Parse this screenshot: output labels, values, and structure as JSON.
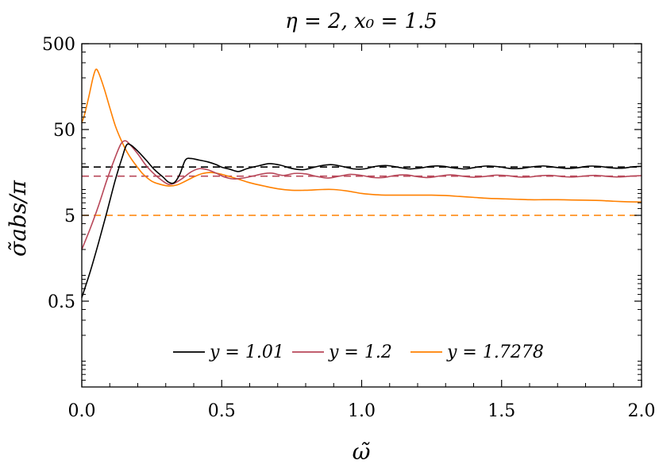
{
  "chart_data": {
    "type": "line",
    "title": "η = 2, x₀ = 1.5",
    "xlabel": "ω̃",
    "ylabel": "σ̃abs/π",
    "xscale": "linear",
    "yscale": "log",
    "xlim": [
      0,
      2
    ],
    "ylim": [
      0.05,
      500
    ],
    "xticks": [
      "0.0",
      "0.5",
      "1.0",
      "1.5",
      "2.0"
    ],
    "yticks": [
      "0.5",
      "5",
      "50",
      "500"
    ],
    "legend_position": "lower-center",
    "grid": false,
    "series": [
      {
        "name": "y = 1.01",
        "color": "#000000",
        "style": "solid",
        "points": [
          [
            0.0,
            0.55
          ],
          [
            0.03,
            1.1
          ],
          [
            0.06,
            2.4
          ],
          [
            0.09,
            5.5
          ],
          [
            0.12,
            13
          ],
          [
            0.145,
            24
          ],
          [
            0.16,
            33
          ],
          [
            0.175,
            33
          ],
          [
            0.2,
            28
          ],
          [
            0.23,
            22
          ],
          [
            0.26,
            17
          ],
          [
            0.29,
            14
          ],
          [
            0.31,
            12.2
          ],
          [
            0.33,
            12.0
          ],
          [
            0.35,
            15
          ],
          [
            0.37,
            22
          ],
          [
            0.39,
            23
          ],
          [
            0.42,
            22
          ],
          [
            0.45,
            21
          ],
          [
            0.48,
            19.5
          ],
          [
            0.5,
            18.2
          ],
          [
            0.53,
            17.2
          ],
          [
            0.56,
            16.2
          ],
          [
            0.59,
            17.5
          ],
          [
            0.63,
            18.8
          ],
          [
            0.67,
            20
          ],
          [
            0.71,
            19.2
          ],
          [
            0.75,
            17.6
          ],
          [
            0.79,
            17
          ],
          [
            0.82,
            17.8
          ],
          [
            0.85,
            18.8
          ],
          [
            0.89,
            19.5
          ],
          [
            0.93,
            18.6
          ],
          [
            0.97,
            17.4
          ],
          [
            1.01,
            17.4
          ],
          [
            1.05,
            18.6
          ],
          [
            1.09,
            19
          ],
          [
            1.13,
            18.2
          ],
          [
            1.17,
            17.4
          ],
          [
            1.21,
            17.8
          ],
          [
            1.25,
            18.7
          ],
          [
            1.29,
            18.7
          ],
          [
            1.33,
            17.8
          ],
          [
            1.37,
            17.4
          ],
          [
            1.41,
            18.2
          ],
          [
            1.45,
            18.8
          ],
          [
            1.49,
            18.4
          ],
          [
            1.53,
            17.6
          ],
          [
            1.57,
            17.6
          ],
          [
            1.61,
            18.4
          ],
          [
            1.65,
            18.8
          ],
          [
            1.69,
            18.2
          ],
          [
            1.73,
            17.6
          ],
          [
            1.77,
            17.9
          ],
          [
            1.81,
            18.7
          ],
          [
            1.85,
            18.6
          ],
          [
            1.89,
            17.9
          ],
          [
            1.93,
            17.7
          ],
          [
            1.97,
            18.4
          ],
          [
            2.0,
            18.6
          ]
        ]
      },
      {
        "name": "y = 1.2",
        "color": "#b8485a",
        "style": "solid",
        "points": [
          [
            0.0,
            2.0
          ],
          [
            0.03,
            3.5
          ],
          [
            0.06,
            6.5
          ],
          [
            0.09,
            13
          ],
          [
            0.12,
            24
          ],
          [
            0.14,
            34
          ],
          [
            0.155,
            37
          ],
          [
            0.17,
            34
          ],
          [
            0.2,
            26
          ],
          [
            0.23,
            19
          ],
          [
            0.26,
            15
          ],
          [
            0.29,
            12.5
          ],
          [
            0.31,
            11.5
          ],
          [
            0.33,
            11.8
          ],
          [
            0.36,
            13.5
          ],
          [
            0.39,
            16
          ],
          [
            0.42,
            17.5
          ],
          [
            0.45,
            17
          ],
          [
            0.48,
            15.5
          ],
          [
            0.51,
            14
          ],
          [
            0.54,
            13.3
          ],
          [
            0.57,
            13.5
          ],
          [
            0.61,
            14.3
          ],
          [
            0.65,
            15.3
          ],
          [
            0.68,
            15.5
          ],
          [
            0.72,
            14.6
          ],
          [
            0.76,
            15.4
          ],
          [
            0.8,
            15.2
          ],
          [
            0.84,
            14.2
          ],
          [
            0.88,
            13.6
          ],
          [
            0.92,
            14.3
          ],
          [
            0.96,
            15
          ],
          [
            1.0,
            14.6
          ],
          [
            1.04,
            13.8
          ],
          [
            1.08,
            13.8
          ],
          [
            1.12,
            14.6
          ],
          [
            1.16,
            14.8
          ],
          [
            1.2,
            14.1
          ],
          [
            1.24,
            13.8
          ],
          [
            1.28,
            14.4
          ],
          [
            1.32,
            14.8
          ],
          [
            1.36,
            14.3
          ],
          [
            1.4,
            13.9
          ],
          [
            1.44,
            14.2
          ],
          [
            1.48,
            14.7
          ],
          [
            1.52,
            14.5
          ],
          [
            1.56,
            14.0
          ],
          [
            1.6,
            14.0
          ],
          [
            1.64,
            14.5
          ],
          [
            1.68,
            14.6
          ],
          [
            1.72,
            14.1
          ],
          [
            1.76,
            14.0
          ],
          [
            1.8,
            14.4
          ],
          [
            1.84,
            14.6
          ],
          [
            1.88,
            14.2
          ],
          [
            1.92,
            14.0
          ],
          [
            1.96,
            14.3
          ],
          [
            2.0,
            14.5
          ]
        ]
      },
      {
        "name": "y = 1.7278",
        "color": "#ff8000",
        "style": "solid",
        "points": [
          [
            0.0,
            60
          ],
          [
            0.01,
            75
          ],
          [
            0.025,
            120
          ],
          [
            0.04,
            200
          ],
          [
            0.05,
            250
          ],
          [
            0.06,
            230
          ],
          [
            0.08,
            150
          ],
          [
            0.1,
            90
          ],
          [
            0.12,
            55
          ],
          [
            0.14,
            38
          ],
          [
            0.16,
            28
          ],
          [
            0.18,
            22
          ],
          [
            0.2,
            18
          ],
          [
            0.22,
            15
          ],
          [
            0.25,
            12.5
          ],
          [
            0.28,
            11.5
          ],
          [
            0.31,
            11.0
          ],
          [
            0.34,
            11.3
          ],
          [
            0.37,
            12.5
          ],
          [
            0.4,
            14
          ],
          [
            0.43,
            15.3
          ],
          [
            0.46,
            15.8
          ],
          [
            0.49,
            15.3
          ],
          [
            0.52,
            14.4
          ],
          [
            0.56,
            13.2
          ],
          [
            0.6,
            12
          ],
          [
            0.65,
            11
          ],
          [
            0.7,
            10.2
          ],
          [
            0.75,
            9.8
          ],
          [
            0.8,
            9.8
          ],
          [
            0.86,
            10
          ],
          [
            0.9,
            10
          ],
          [
            0.95,
            9.6
          ],
          [
            1.0,
            9.0
          ],
          [
            1.05,
            8.7
          ],
          [
            1.1,
            8.6
          ],
          [
            1.15,
            8.6
          ],
          [
            1.2,
            8.6
          ],
          [
            1.25,
            8.6
          ],
          [
            1.3,
            8.5
          ],
          [
            1.35,
            8.3
          ],
          [
            1.4,
            8.1
          ],
          [
            1.45,
            7.9
          ],
          [
            1.5,
            7.8
          ],
          [
            1.55,
            7.7
          ],
          [
            1.6,
            7.6
          ],
          [
            1.65,
            7.6
          ],
          [
            1.7,
            7.6
          ],
          [
            1.75,
            7.55
          ],
          [
            1.8,
            7.5
          ],
          [
            1.85,
            7.45
          ],
          [
            1.9,
            7.3
          ],
          [
            1.95,
            7.2
          ],
          [
            2.0,
            7.15
          ]
        ]
      }
    ],
    "reference_lines": [
      {
        "y": 18.3,
        "color": "#000000",
        "style": "dashed"
      },
      {
        "y": 14.3,
        "color": "#b8485a",
        "style": "dashed"
      },
      {
        "y": 5.0,
        "color": "#ff8000",
        "style": "dashed"
      }
    ]
  }
}
